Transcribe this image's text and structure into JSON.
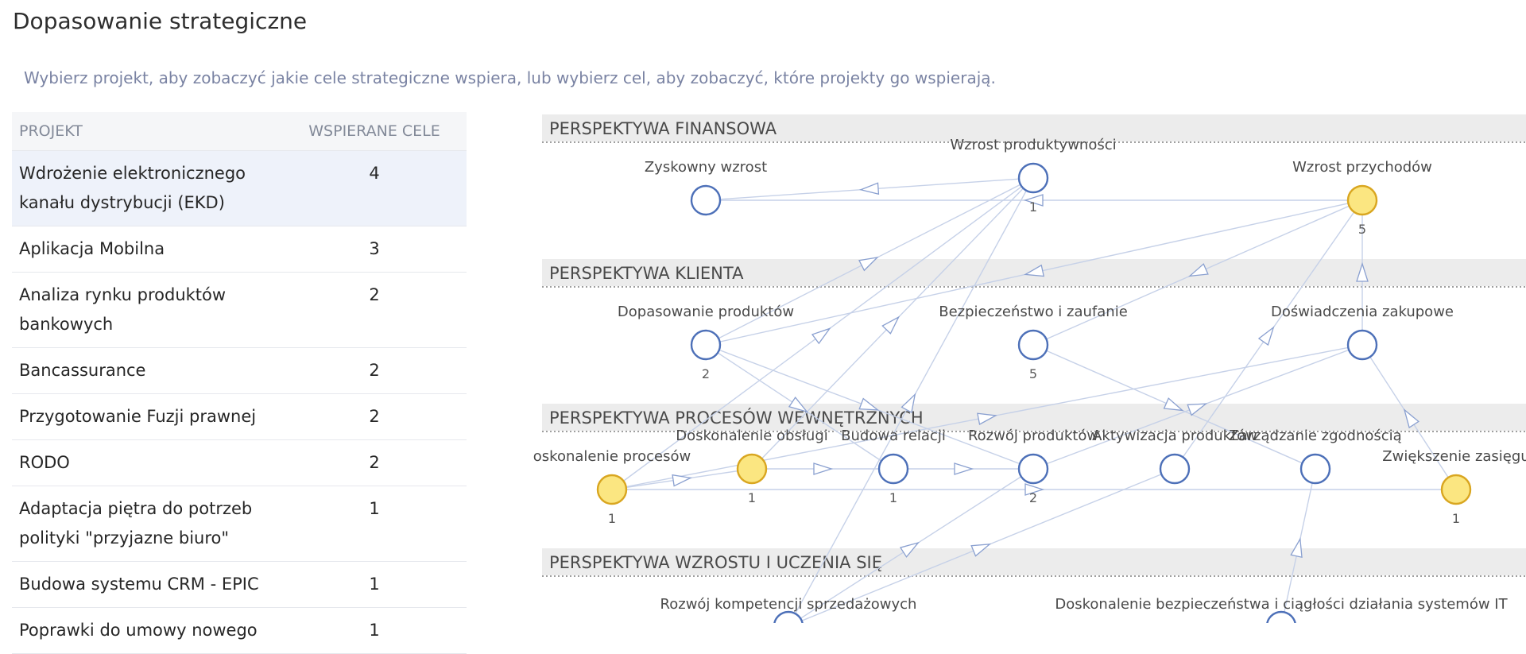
{
  "page": {
    "title": "Dopasowanie strategiczne",
    "subtitle": "Wybierz projekt, aby zobaczyć jakie cele strategiczne wspiera, lub wybierz cel, aby zobaczyć, które projekty go wspierają."
  },
  "table": {
    "header_project": "PROJEKT",
    "header_goals": "WSPIERANE CELE",
    "rows": [
      {
        "name": "Wdrożenie elektronicznego kanału dystrybucji (EKD)",
        "goals": "4",
        "selected": true
      },
      {
        "name": "Aplikacja Mobilna",
        "goals": "3",
        "selected": false
      },
      {
        "name": "Analiza rynku produktów bankowych",
        "goals": "2",
        "selected": false
      },
      {
        "name": "Bancassurance",
        "goals": "2",
        "selected": false
      },
      {
        "name": "Przygotowanie Fuzji prawnej",
        "goals": "2",
        "selected": false
      },
      {
        "name": "RODO",
        "goals": "2",
        "selected": false
      },
      {
        "name": "Adaptacja piętra do potrzeb polityki \"przyjazne biuro\"",
        "goals": "1",
        "selected": false
      },
      {
        "name": "Budowa systemu CRM - EPIC",
        "goals": "1",
        "selected": false
      },
      {
        "name": "Poprawki do umowy nowego",
        "goals": "1",
        "selected": false
      }
    ]
  },
  "map": {
    "colors": {
      "node_stroke": "#4d70b8",
      "highlight_fill": "#fbe681",
      "highlight_stroke": "#d9a620",
      "edge": "#c6d1e8",
      "band_bg": "#ececec"
    },
    "perspectives": [
      {
        "id": "fin",
        "title": "PERSPEKTYWA FINANSOWA"
      },
      {
        "id": "kli",
        "title": "PERSPEKTYWA KLIENTA"
      },
      {
        "id": "pro",
        "title": "PERSPEKTYWA PROCESÓW WEWNĘTRZNYCH"
      },
      {
        "id": "wzr",
        "title": "PERSPEKTYWA WZROSTU I UCZENIA SIĘ"
      }
    ],
    "goals": [
      {
        "id": "zysk",
        "perspective": "fin",
        "label": "Zyskowny wzrost",
        "count": "",
        "highlighted": false
      },
      {
        "id": "prod",
        "perspective": "fin",
        "label": "Wzrost produktywności",
        "count": "1",
        "highlighted": false
      },
      {
        "id": "przych",
        "perspective": "fin",
        "label": "Wzrost przychodów",
        "count": "5",
        "highlighted": true
      },
      {
        "id": "dopas",
        "perspective": "kli",
        "label": "Dopasowanie produktów",
        "count": "2",
        "highlighted": false
      },
      {
        "id": "bezp",
        "perspective": "kli",
        "label": "Bezpieczeństwo i zaufanie",
        "count": "5",
        "highlighted": false
      },
      {
        "id": "dosw",
        "perspective": "kli",
        "label": "Doświadczenia zakupowe",
        "count": "",
        "highlighted": false
      },
      {
        "id": "doskpr",
        "perspective": "pro",
        "label": "oskonalenie procesów",
        "count": "1",
        "highlighted": true
      },
      {
        "id": "doskob",
        "perspective": "pro",
        "label": "Doskonalenie obsługi",
        "count": "1",
        "highlighted": true
      },
      {
        "id": "budrel",
        "perspective": "pro",
        "label": "Budowa relacji",
        "count": "1",
        "highlighted": false
      },
      {
        "id": "rozprod",
        "perspective": "pro",
        "label": "Rozwój produktów",
        "count": "2",
        "highlighted": false
      },
      {
        "id": "aktyw",
        "perspective": "pro",
        "label": "Aktywizacja produktów",
        "count": "",
        "highlighted": false
      },
      {
        "id": "zarz",
        "perspective": "pro",
        "label": "Zarządzanie zgodnością",
        "count": "",
        "highlighted": false
      },
      {
        "id": "zasieg",
        "perspective": "pro",
        "label": "Zwiększenie zasięgu",
        "count": "1",
        "highlighted": true
      },
      {
        "id": "kompsp",
        "perspective": "wzr",
        "label": "Rozwój kompetencji sprzedażowych",
        "count": "",
        "highlighted": false
      },
      {
        "id": "bezpit",
        "perspective": "wzr",
        "label": "Doskonalenie bezpieczeństwa i ciągłości działania systemów IT",
        "count": "",
        "highlighted": false
      }
    ],
    "links": [
      [
        "prod",
        "zysk"
      ],
      [
        "przych",
        "zysk"
      ],
      [
        "przych",
        "dopas"
      ],
      [
        "przych",
        "bezp"
      ],
      [
        "dosw",
        "przych"
      ],
      [
        "dopas",
        "prod"
      ],
      [
        "doskpr",
        "prod"
      ],
      [
        "doskob",
        "prod"
      ],
      [
        "dopas",
        "budrel"
      ],
      [
        "dopas",
        "rozprod"
      ],
      [
        "aktyw",
        "przych"
      ],
      [
        "doskpr",
        "dosw"
      ],
      [
        "doskpr",
        "doskob"
      ],
      [
        "doskob",
        "budrel"
      ],
      [
        "budrel",
        "rozprod"
      ],
      [
        "doskpr",
        "zasieg"
      ],
      [
        "bezp",
        "zarz"
      ],
      [
        "rozprod",
        "dosw"
      ],
      [
        "zasieg",
        "dosw"
      ],
      [
        "kompsp",
        "rozprod"
      ],
      [
        "kompsp",
        "aktyw"
      ],
      [
        "kompsp",
        "prod"
      ],
      [
        "bezpit",
        "zarz"
      ]
    ]
  }
}
